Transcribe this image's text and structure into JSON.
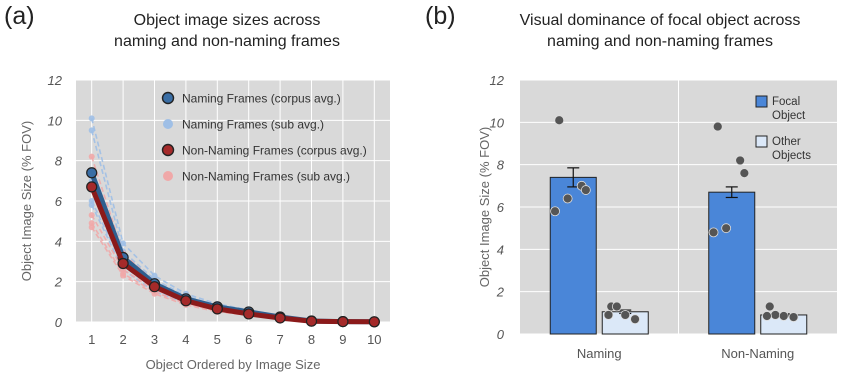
{
  "chart_data": [
    {
      "panel_label": "(a)",
      "type": "line",
      "title_lines": [
        "Object image sizes across",
        "naming and non-naming frames"
      ],
      "xlabel": "Object Ordered by Image Size",
      "ylabel": "Object Image Size (% FOV)",
      "x": [
        1,
        2,
        3,
        4,
        5,
        6,
        7,
        8,
        9,
        10
      ],
      "xlim": [
        0.5,
        10.5
      ],
      "ylim": [
        0,
        12
      ],
      "yticks": [
        0,
        2,
        4,
        6,
        8,
        10,
        12
      ],
      "grid": true,
      "legend_position": "top-right",
      "series": [
        {
          "name": "Naming Frames (corpus avg.)",
          "color": "#2f5f8f",
          "marker_color": "#3a6ea5",
          "values": [
            7.4,
            3.2,
            1.9,
            1.15,
            0.75,
            0.5,
            0.25,
            0.05,
            0.02,
            0.01
          ]
        },
        {
          "name": "Naming Frames (sub avg.)",
          "color": "#9fbfe6",
          "subjects": [
            [
              10.1,
              3.9,
              2.3,
              1.4,
              0.9,
              0.6,
              0.3,
              0.1,
              0.03,
              0.01
            ],
            [
              9.5,
              3.5,
              2.1,
              1.3,
              0.8,
              0.55,
              0.3,
              0.08,
              0.02,
              0.01
            ],
            [
              7.0,
              3.0,
              1.8,
              1.1,
              0.7,
              0.45,
              0.25,
              0.05,
              0.02,
              0.01
            ],
            [
              6.0,
              2.8,
              1.6,
              1.0,
              0.65,
              0.4,
              0.2,
              0.05,
              0.02,
              0.01
            ],
            [
              5.8,
              2.6,
              1.5,
              0.95,
              0.6,
              0.4,
              0.2,
              0.04,
              0.01,
              0.01
            ]
          ]
        },
        {
          "name": "Non-Naming Frames (corpus avg.)",
          "color": "#8b1a1a",
          "marker_color": "#a52a2a",
          "values": [
            6.7,
            2.9,
            1.75,
            1.05,
            0.65,
            0.4,
            0.2,
            0.04,
            0.02,
            0.01
          ]
        },
        {
          "name": "Non-Naming Frames (sub avg.)",
          "color": "#f0a8a8",
          "subjects": [
            [
              8.2,
              3.4,
              2.0,
              1.2,
              0.75,
              0.45,
              0.25,
              0.06,
              0.02,
              0.01
            ],
            [
              7.4,
              3.1,
              1.85,
              1.1,
              0.7,
              0.42,
              0.22,
              0.05,
              0.02,
              0.01
            ],
            [
              5.3,
              2.6,
              1.6,
              1.0,
              0.6,
              0.38,
              0.18,
              0.04,
              0.01,
              0.01
            ],
            [
              4.9,
              2.4,
              1.5,
              0.9,
              0.55,
              0.35,
              0.15,
              0.03,
              0.01,
              0.01
            ],
            [
              4.7,
              2.3,
              1.4,
              0.85,
              0.5,
              0.33,
              0.15,
              0.03,
              0.01,
              0.01
            ]
          ]
        }
      ]
    },
    {
      "panel_label": "(b)",
      "type": "bar",
      "title_lines": [
        "Visual dominance of focal object across",
        "naming and non-naming frames"
      ],
      "ylabel": "Object Image Size (% FOV)",
      "categories": [
        "Naming",
        "Non-Naming"
      ],
      "ylim": [
        0,
        12
      ],
      "yticks": [
        0,
        2,
        4,
        6,
        8,
        10,
        12
      ],
      "grid": true,
      "legend_position": "top-right",
      "series": [
        {
          "name": "Focal Object",
          "color": "#4a86d8",
          "values": [
            7.4,
            6.7
          ],
          "errors": [
            0.45,
            0.25
          ],
          "subject_points": [
            [
              10.1,
              7.0,
              6.8,
              6.4,
              5.8
            ],
            [
              9.8,
              8.2,
              7.6,
              5.0,
              4.8
            ]
          ]
        },
        {
          "name": "Other Objects",
          "color": "#dbe8f8",
          "values": [
            1.05,
            0.9
          ],
          "errors": [
            0.08,
            0.05
          ],
          "subject_points": [
            [
              1.3,
              1.3,
              0.9,
              0.9,
              0.7
            ],
            [
              1.3,
              0.9,
              0.85,
              0.85,
              0.8
            ]
          ]
        }
      ]
    }
  ]
}
